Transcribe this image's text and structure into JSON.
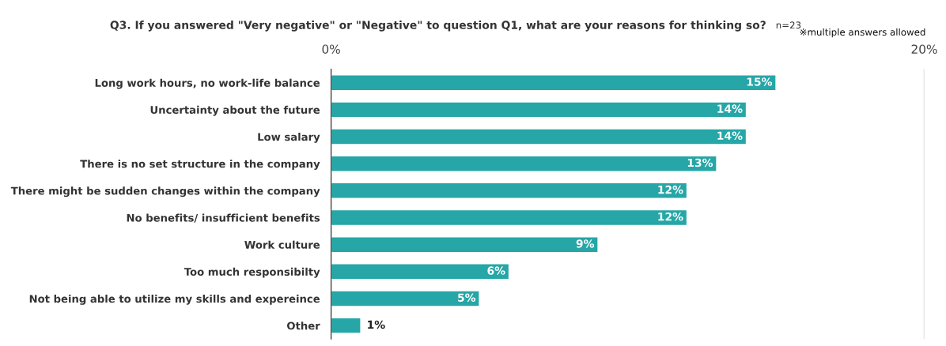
{
  "chart_data": {
    "type": "bar",
    "orientation": "horizontal",
    "title": "Q3. If you answered \"Very negative\" or \"Negative\" to question Q1, what are your reasons for thinking so?",
    "annotations": [
      "n=23",
      "※multiple answers allowed"
    ],
    "categories": [
      "Long work hours, no work-life balance",
      "Uncertainty about the future",
      "Low salary",
      "There is no set structure in the company",
      "There might be sudden changes within the company",
      "No benefits/ insufficient benefits",
      "Work culture",
      "Too much responsibilty",
      "Not being able to utilize my skills and expereince",
      "Other"
    ],
    "values": [
      15,
      14,
      14,
      13,
      12,
      12,
      9,
      6,
      5,
      1
    ],
    "value_labels": [
      "15%",
      "14%",
      "14%",
      "13%",
      "12%",
      "12%",
      "9%",
      "6%",
      "5%",
      "1%"
    ],
    "color": "#26a6a6",
    "xlim": [
      0,
      20
    ],
    "xticks": [
      {
        "value": 0,
        "label": "0%"
      },
      {
        "value": 20,
        "label": "20%"
      }
    ],
    "grid": "x",
    "legend": false
  }
}
